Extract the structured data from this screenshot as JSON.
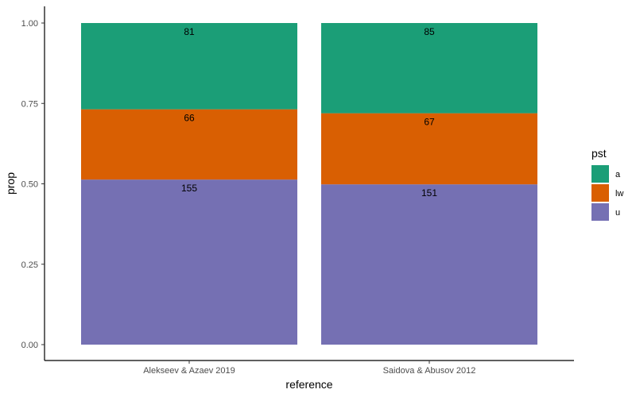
{
  "chart_data": {
    "type": "bar",
    "stacked": true,
    "normalized": true,
    "categories": [
      "Alekseev & Azaev 2019",
      "Saidova & Abusov 2012"
    ],
    "series": [
      {
        "name": "u",
        "color": "#7570B3",
        "counts": [
          155,
          151
        ]
      },
      {
        "name": "lw",
        "color": "#D95F02",
        "counts": [
          66,
          67
        ]
      },
      {
        "name": "a",
        "color": "#1B9E77",
        "counts": [
          81,
          85
        ]
      }
    ],
    "xlabel": "reference",
    "ylabel": "prop",
    "ylim": [
      0,
      1
    ],
    "yticks": [
      "0.00",
      "0.25",
      "0.50",
      "0.75",
      "1.00"
    ],
    "legend": {
      "title": "pst",
      "position": "right",
      "order": [
        "a",
        "lw",
        "u"
      ]
    },
    "grid": false
  }
}
